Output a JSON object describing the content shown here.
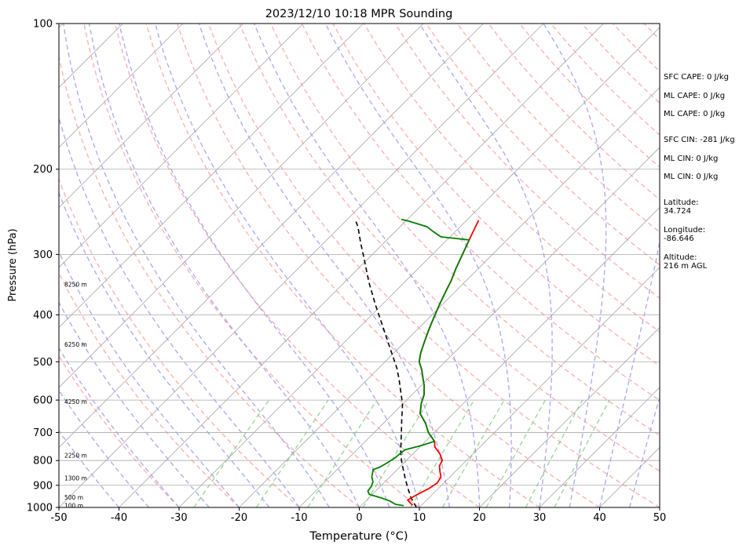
{
  "chart_data": {
    "type": "line",
    "title": "2023/12/10 10:18 MPR Sounding",
    "xlabel": "Temperature (°C)",
    "ylabel": "Pressure (hPa)",
    "xlim": [
      -50,
      50
    ],
    "ylim": [
      1000,
      100
    ],
    "y_scale": "log",
    "grid": true,
    "x_ticks": [
      -50,
      -40,
      -30,
      -20,
      -10,
      0,
      10,
      20,
      30,
      40,
      50
    ],
    "y_ticks": [
      100,
      200,
      300,
      400,
      500,
      600,
      700,
      800,
      900,
      1000
    ],
    "height_labels": [
      {
        "label": "100 m",
        "p": 990
      },
      {
        "label": "500 m",
        "p": 953
      },
      {
        "label": "1300 m",
        "p": 870
      },
      {
        "label": "2250 m",
        "p": 780
      },
      {
        "label": "4250 m",
        "p": 604
      },
      {
        "label": "6250 m",
        "p": 460
      },
      {
        "label": "8250 m",
        "p": 346
      }
    ],
    "series": [
      {
        "color": "#ff0000",
        "points": [
          [
            8.5,
            990
          ],
          [
            6.8,
            965
          ],
          [
            7.5,
            940
          ],
          [
            8.4,
            915
          ],
          [
            8.9,
            890
          ],
          [
            8.5,
            865
          ],
          [
            7.3,
            840
          ],
          [
            6.4,
            820
          ],
          [
            6.0,
            800
          ],
          [
            4.5,
            775
          ],
          [
            2.5,
            750
          ],
          [
            1.5,
            730
          ],
          [
            -1,
            700
          ],
          [
            -3,
            670
          ],
          [
            -5.5,
            640
          ],
          [
            -7,
            610
          ],
          [
            -8,
            585
          ],
          [
            -9.5,
            560
          ],
          [
            -11,
            540
          ],
          [
            -12.5,
            520
          ],
          [
            -14.3,
            500
          ],
          [
            -15.5,
            480
          ],
          [
            -16.5,
            460
          ],
          [
            -17.5,
            440
          ],
          [
            -18.5,
            420
          ],
          [
            -19.5,
            400
          ],
          [
            -20.5,
            380
          ],
          [
            -21.5,
            360
          ],
          [
            -22.5,
            340
          ],
          [
            -23.8,
            320
          ],
          [
            -25,
            300
          ],
          [
            -26.3,
            280
          ],
          [
            -27.3,
            265
          ],
          [
            -28,
            255
          ]
        ]
      },
      {
        "color": "#008000",
        "points": [
          [
            7.1,
            992
          ],
          [
            5.5,
            985
          ],
          [
            4.0,
            970
          ],
          [
            2.0,
            955
          ],
          [
            -0.5,
            940
          ],
          [
            -1.3,
            925
          ],
          [
            -1.5,
            905
          ],
          [
            -2.0,
            885
          ],
          [
            -3.0,
            865
          ],
          [
            -3.5,
            850
          ],
          [
            -4.0,
            835
          ],
          [
            -3.3,
            825
          ],
          [
            -2.8,
            810
          ],
          [
            -2.3,
            790
          ],
          [
            -2.2,
            775
          ],
          [
            -2.0,
            760
          ],
          [
            0,
            745
          ],
          [
            1.5,
            730
          ],
          [
            -1,
            700
          ],
          [
            -3,
            670
          ],
          [
            -5.5,
            640
          ],
          [
            -7,
            610
          ],
          [
            -8,
            585
          ],
          [
            -9.5,
            560
          ],
          [
            -11,
            540
          ],
          [
            -12.5,
            520
          ],
          [
            -14.3,
            500
          ],
          [
            -15.5,
            480
          ],
          [
            -16.5,
            460
          ],
          [
            -17.5,
            440
          ],
          [
            -18.5,
            420
          ],
          [
            -19.5,
            400
          ],
          [
            -20.5,
            380
          ],
          [
            -21.5,
            360
          ],
          [
            -22.5,
            340
          ],
          [
            -23.8,
            320
          ],
          [
            -25,
            300
          ],
          [
            -26.3,
            280
          ],
          [
            -31.5,
            276
          ],
          [
            -34,
            268
          ],
          [
            -35.5,
            263
          ],
          [
            -39.5,
            256
          ],
          [
            -41,
            254
          ]
        ]
      }
    ],
    "parcel_profile": {
      "color": "#000000",
      "style": "dashed",
      "points": [
        [
          9.5,
          1000
        ],
        [
          7.0,
          955
        ],
        [
          5.0,
          915
        ],
        [
          3.0,
          875
        ],
        [
          1.0,
          835
        ],
        [
          -0.8,
          800
        ],
        [
          -2.5,
          765
        ],
        [
          -5,
          710
        ],
        [
          -7.5,
          660
        ],
        [
          -10,
          612
        ],
        [
          -12.5,
          575
        ],
        [
          -15,
          540
        ],
        [
          -17,
          515
        ],
        [
          -21,
          473
        ],
        [
          -26,
          425
        ],
        [
          -31,
          382
        ],
        [
          -36,
          342
        ],
        [
          -40,
          311
        ],
        [
          -44,
          283
        ],
        [
          -47,
          263
        ],
        [
          -48.5,
          255
        ]
      ]
    },
    "stats": {
      "sfc_cape": "SFC CAPE: 0 J/kg",
      "ml_cape_1": "ML CAPE: 0 J/kg",
      "ml_cape_2": "ML CAPE: 0 J/kg",
      "sfc_cin": "SFC CIN: -281 J/kg",
      "ml_cin_1": "ML CIN: 0 J/kg",
      "ml_cin_2": "ML CIN: 0 J/kg",
      "latitude_label": "Latitude:",
      "latitude_value": "34.724",
      "longitude_label": "Longitude:",
      "longitude_value": "-86.646",
      "altitude_label": "Altitude:",
      "altitude_value": "216 m AGL"
    },
    "colors": {
      "temperature": "#ff0000",
      "dewpoint": "#008000",
      "parcel": "#000000",
      "dry_adiabats": "#ff9999",
      "moist_adiabats": "#9999ee",
      "mixing_ratio": "#88cc88",
      "isotherms": "#aaaaaa"
    }
  }
}
